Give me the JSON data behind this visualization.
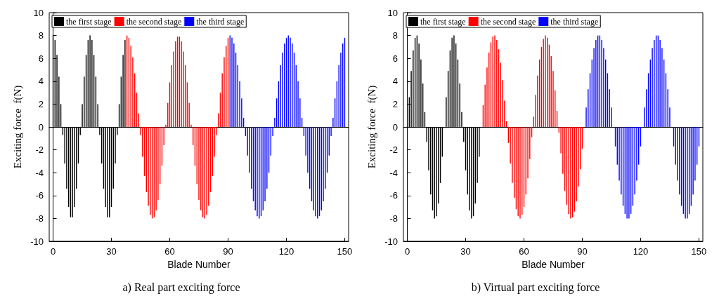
{
  "chart_data": [
    {
      "type": "bar",
      "title": "a) Real part exciting force",
      "xlabel": "Blade Number",
      "ylabel": "Exciting force  f(N)",
      "xlim": [
        -2,
        152
      ],
      "xticks": [
        0,
        30,
        60,
        90,
        120,
        150
      ],
      "ylim": [
        -10,
        10
      ],
      "yticks": [
        -10,
        -8,
        -6,
        -4,
        -2,
        0,
        2,
        4,
        6,
        8,
        10
      ],
      "legend": "top left",
      "series": [
        {
          "name": "the first stage",
          "color": "#000000",
          "x": [
            0,
            1,
            2,
            3,
            4,
            5,
            6,
            7,
            8,
            9,
            10,
            11,
            12,
            13,
            14,
            15,
            16,
            17,
            18,
            19,
            20,
            21,
            22,
            23,
            24,
            25,
            26,
            27,
            28,
            29,
            30,
            31,
            32,
            33,
            34,
            35,
            36,
            37
          ],
          "values": [
            8.0,
            7.6,
            6.3,
            4.4,
            2.0,
            -0.7,
            -3.2,
            -5.4,
            -7.0,
            -7.9,
            -7.9,
            -7.0,
            -5.4,
            -3.2,
            -0.7,
            2.0,
            4.4,
            6.3,
            7.6,
            8.0,
            7.6,
            6.3,
            4.4,
            2.0,
            -0.7,
            -3.2,
            -5.4,
            -7.0,
            -7.9,
            -7.9,
            -7.0,
            -5.4,
            -3.2,
            -0.7,
            2.0,
            4.4,
            6.3,
            7.6
          ]
        },
        {
          "name": "the second stage",
          "color": "#ff0000",
          "x": [
            38,
            39,
            40,
            41,
            42,
            43,
            44,
            45,
            46,
            47,
            48,
            49,
            50,
            51,
            52,
            53,
            54,
            55,
            56,
            57,
            58,
            59,
            60,
            61,
            62,
            63,
            64,
            65,
            66,
            67,
            68,
            69,
            70,
            71,
            72,
            73,
            74,
            75,
            76,
            77,
            78,
            79,
            80,
            81,
            82,
            83,
            84,
            85,
            86,
            87,
            88,
            89,
            90
          ],
          "values": [
            8.0,
            7.8,
            7.1,
            6.1,
            4.7,
            3.0,
            1.2,
            -0.7,
            -2.6,
            -4.3,
            -5.7,
            -6.9,
            -7.7,
            -8.0,
            -7.9,
            -7.3,
            -6.4,
            -5.0,
            -3.4,
            -1.6,
            0.2,
            2.1,
            3.9,
            5.4,
            6.6,
            7.5,
            7.9,
            7.9,
            7.5,
            6.6,
            5.4,
            3.9,
            2.1,
            0.2,
            -1.6,
            -3.4,
            -5.0,
            -6.4,
            -7.3,
            -7.9,
            -8.0,
            -7.7,
            -6.9,
            -5.7,
            -4.3,
            -2.6,
            -0.7,
            1.2,
            3.0,
            4.7,
            6.1,
            7.1,
            7.8
          ]
        },
        {
          "name": "the third stage",
          "color": "#0000ff",
          "x": [
            91,
            92,
            93,
            94,
            95,
            96,
            97,
            98,
            99,
            100,
            101,
            102,
            103,
            104,
            105,
            106,
            107,
            108,
            109,
            110,
            111,
            112,
            113,
            114,
            115,
            116,
            117,
            118,
            119,
            120,
            121,
            122,
            123,
            124,
            125,
            126,
            127,
            128,
            129,
            130,
            131,
            132,
            133,
            134,
            135,
            136,
            137,
            138,
            139,
            140,
            141,
            142,
            143,
            144,
            145,
            146,
            147,
            148,
            149,
            150
          ],
          "values": [
            8.0,
            7.8,
            7.3,
            6.5,
            5.4,
            4.0,
            2.5,
            0.8,
            -0.8,
            -2.5,
            -4.0,
            -5.4,
            -6.5,
            -7.3,
            -7.8,
            -8.0,
            -7.8,
            -7.3,
            -6.5,
            -5.4,
            -4.0,
            -2.5,
            -0.8,
            0.8,
            2.5,
            4.0,
            5.4,
            6.5,
            7.3,
            7.8,
            8.0,
            7.8,
            7.3,
            6.5,
            5.4,
            4.0,
            2.5,
            0.8,
            -0.8,
            -2.5,
            -4.0,
            -5.4,
            -6.5,
            -7.3,
            -7.8,
            -8.0,
            -7.8,
            -7.3,
            -6.5,
            -5.4,
            -4.0,
            -2.5,
            -0.8,
            0.8,
            2.5,
            4.0,
            5.4,
            6.5,
            7.3,
            7.8
          ]
        }
      ]
    },
    {
      "type": "bar",
      "title": "b) Virtual part exciting force",
      "xlabel": "Blade Number",
      "ylabel": "Exciting force  f(N)",
      "xlim": [
        -2,
        152
      ],
      "xticks": [
        0,
        30,
        60,
        90,
        120,
        150
      ],
      "ylim": [
        -10,
        10
      ],
      "yticks": [
        -10,
        -8,
        -6,
        -4,
        -2,
        0,
        2,
        4,
        6,
        8,
        10
      ],
      "legend": "top left",
      "series": [
        {
          "name": "the first stage",
          "color": "#000000",
          "x": [
            0,
            1,
            2,
            3,
            4,
            5,
            6,
            7,
            8,
            9,
            10,
            11,
            12,
            13,
            14,
            15,
            16,
            17,
            18,
            19,
            20,
            21,
            22,
            23,
            24,
            25,
            26,
            27,
            28,
            29,
            30,
            31,
            32,
            33,
            34,
            35,
            36,
            37
          ],
          "values": [
            0.0,
            2.6,
            4.9,
            6.7,
            7.8,
            8.0,
            7.3,
            5.9,
            3.8,
            1.3,
            -1.3,
            -3.8,
            -5.9,
            -7.3,
            -8.0,
            -7.8,
            -6.7,
            -4.9,
            -2.6,
            0.0,
            2.6,
            4.9,
            6.7,
            7.8,
            8.0,
            7.3,
            5.9,
            3.8,
            1.3,
            -1.3,
            -3.8,
            -5.9,
            -7.3,
            -8.0,
            -7.8,
            -6.7,
            -4.9,
            -2.6
          ]
        },
        {
          "name": "the second stage",
          "color": "#ff0000",
          "x": [
            38,
            39,
            40,
            41,
            42,
            43,
            44,
            45,
            46,
            47,
            48,
            49,
            50,
            51,
            52,
            53,
            54,
            55,
            56,
            57,
            58,
            59,
            60,
            61,
            62,
            63,
            64,
            65,
            66,
            67,
            68,
            69,
            70,
            71,
            72,
            73,
            74,
            75,
            76,
            77,
            78,
            79,
            80,
            81,
            82,
            83,
            84,
            85,
            86,
            87,
            88,
            89,
            90
          ],
          "values": [
            0.0,
            1.9,
            3.7,
            5.2,
            6.5,
            7.4,
            7.9,
            8.0,
            7.6,
            6.8,
            5.6,
            4.1,
            2.3,
            0.5,
            -1.4,
            -3.2,
            -4.9,
            -6.2,
            -7.2,
            -7.8,
            -8.0,
            -7.7,
            -7.0,
            -5.9,
            -4.5,
            -2.8,
            -0.9,
            0.9,
            2.8,
            4.5,
            5.9,
            7.0,
            7.7,
            8.0,
            7.8,
            7.2,
            6.2,
            4.9,
            3.2,
            1.4,
            -0.5,
            -2.3,
            -4.1,
            -5.6,
            -6.8,
            -7.6,
            -8.0,
            -7.9,
            -7.4,
            -6.5,
            -5.2,
            -3.7,
            -1.9
          ]
        },
        {
          "name": "the third stage",
          "color": "#0000ff",
          "x": [
            91,
            92,
            93,
            94,
            95,
            96,
            97,
            98,
            99,
            100,
            101,
            102,
            103,
            104,
            105,
            106,
            107,
            108,
            109,
            110,
            111,
            112,
            113,
            114,
            115,
            116,
            117,
            118,
            119,
            120,
            121,
            122,
            123,
            124,
            125,
            126,
            127,
            128,
            129,
            130,
            131,
            132,
            133,
            134,
            135,
            136,
            137,
            138,
            139,
            140,
            141,
            142,
            143,
            144,
            145,
            146,
            147,
            148,
            149,
            150
          ],
          "values": [
            0.0,
            1.7,
            3.3,
            4.7,
            5.9,
            6.9,
            7.6,
            8.0,
            8.0,
            7.6,
            6.9,
            5.9,
            4.7,
            3.3,
            1.7,
            0.0,
            -1.7,
            -3.3,
            -4.7,
            -5.9,
            -6.9,
            -7.6,
            -8.0,
            -8.0,
            -7.6,
            -6.9,
            -5.9,
            -4.7,
            -3.3,
            -1.7,
            0.0,
            1.7,
            3.3,
            4.7,
            5.9,
            6.9,
            7.6,
            8.0,
            8.0,
            7.6,
            6.9,
            5.9,
            4.7,
            3.3,
            1.7,
            0.0,
            -1.7,
            -3.3,
            -4.7,
            -5.9,
            -6.9,
            -7.6,
            -8.0,
            -8.0,
            -7.6,
            -6.9,
            -5.9,
            -4.7,
            -3.3,
            -1.7
          ]
        }
      ]
    }
  ]
}
